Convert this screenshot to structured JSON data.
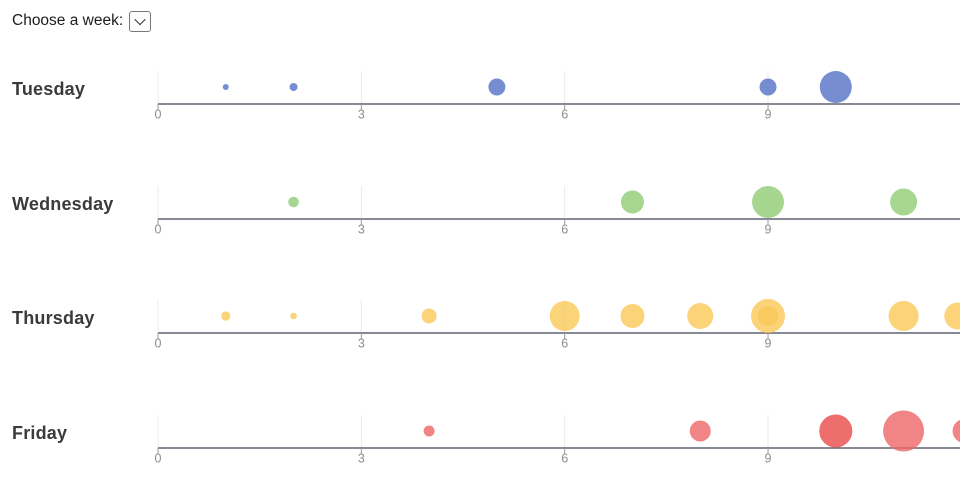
{
  "header": {
    "label": "Choose a week:",
    "select": {
      "value": "",
      "icon": "chevron-down-icon"
    }
  },
  "colors": {
    "axis_line": "#5f6370",
    "tick_mark": "#999999",
    "tick_label": "#8d8d8d",
    "gridline": "#ebebeb",
    "day_label": "#3b3b3b"
  },
  "chart_data": {
    "type": "scatter",
    "subtype": "bubble-timeline-small-multiples",
    "title": "",
    "xlabel": "",
    "ylabel": "",
    "x_axis": {
      "min": 0,
      "max": 11.9,
      "tick_values": [
        0,
        3,
        6,
        9
      ],
      "tick_labels": [
        "0",
        "3",
        "6",
        "9"
      ],
      "grid": true
    },
    "legend": "none",
    "bubble_opacity": 0.8,
    "rows": [
      {
        "day": "Tuesday",
        "color": "#5470c6",
        "bubbles": [
          {
            "x": 1,
            "r": 3
          },
          {
            "x": 2,
            "r": 4
          },
          {
            "x": 5,
            "r": 8.5
          },
          {
            "x": 9,
            "r": 8.5
          },
          {
            "x": 10,
            "r": 16
          }
        ]
      },
      {
        "day": "Wednesday",
        "color": "#91cc75",
        "bubbles": [
          {
            "x": 2,
            "r": 5.3
          },
          {
            "x": 7,
            "r": 11.5
          },
          {
            "x": 9,
            "r": 16
          },
          {
            "x": 11,
            "r": 13.5
          }
        ]
      },
      {
        "day": "Thursday",
        "color": "#fac858",
        "bubbles": [
          {
            "x": 1,
            "r": 4.6
          },
          {
            "x": 2,
            "r": 3.3
          },
          {
            "x": 4,
            "r": 7.5
          },
          {
            "x": 6,
            "r": 15
          },
          {
            "x": 7,
            "r": 12
          },
          {
            "x": 8,
            "r": 13
          },
          {
            "x": 9,
            "r": 17
          },
          {
            "x": 9,
            "r": 10
          },
          {
            "x": 11,
            "r": 15
          },
          {
            "x": 11.8,
            "r": 13.5
          }
        ]
      },
      {
        "day": "Friday",
        "color": "#ee6666",
        "bubbles": [
          {
            "x": 4,
            "r": 5.5
          },
          {
            "x": 8,
            "r": 10.5
          },
          {
            "x": 10,
            "r": 16.5
          },
          {
            "x": 10,
            "r": 16.5
          },
          {
            "x": 11,
            "r": 20.5
          },
          {
            "x": 11.9,
            "r": 12
          }
        ]
      }
    ]
  }
}
